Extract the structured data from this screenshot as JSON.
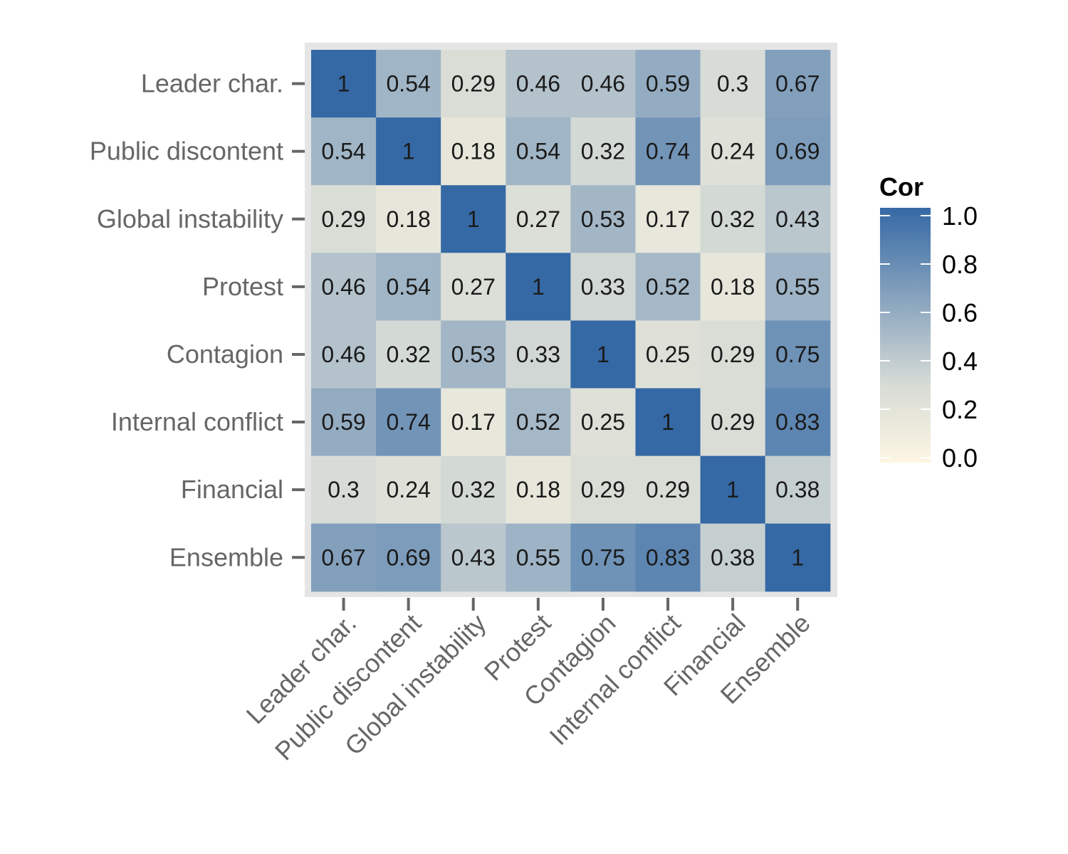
{
  "chart_data": {
    "type": "heatmap",
    "title": "",
    "xlabel": "",
    "ylabel": "",
    "categories": [
      "Leader char.",
      "Public discontent",
      "Global instability",
      "Protest",
      "Contagion",
      "Internal conflict",
      "Financial",
      "Ensemble"
    ],
    "values": [
      [
        1,
        0.54,
        0.29,
        0.46,
        0.46,
        0.59,
        0.3,
        0.67
      ],
      [
        0.54,
        1,
        0.18,
        0.54,
        0.32,
        0.74,
        0.24,
        0.69
      ],
      [
        0.29,
        0.18,
        1,
        0.27,
        0.53,
        0.17,
        0.32,
        0.43
      ],
      [
        0.46,
        0.54,
        0.27,
        1,
        0.33,
        0.52,
        0.18,
        0.55
      ],
      [
        0.46,
        0.32,
        0.53,
        0.33,
        1,
        0.25,
        0.29,
        0.75
      ],
      [
        0.59,
        0.74,
        0.17,
        0.52,
        0.25,
        1,
        0.29,
        0.83
      ],
      [
        0.3,
        0.24,
        0.32,
        0.18,
        0.29,
        0.29,
        1,
        0.38
      ],
      [
        0.67,
        0.69,
        0.43,
        0.55,
        0.75,
        0.83,
        0.38,
        1
      ]
    ],
    "cell_labels": [
      [
        "1",
        "0.54",
        "0.29",
        "0.46",
        "0.46",
        "0.59",
        "0.3",
        "0.67"
      ],
      [
        "0.54",
        "1",
        "0.18",
        "0.54",
        "0.32",
        "0.74",
        "0.24",
        "0.69"
      ],
      [
        "0.29",
        "0.18",
        "1",
        "0.27",
        "0.53",
        "0.17",
        "0.32",
        "0.43"
      ],
      [
        "0.46",
        "0.54",
        "0.27",
        "1",
        "0.33",
        "0.52",
        "0.18",
        "0.55"
      ],
      [
        "0.46",
        "0.32",
        "0.53",
        "0.33",
        "1",
        "0.25",
        "0.29",
        "0.75"
      ],
      [
        "0.59",
        "0.74",
        "0.17",
        "0.52",
        "0.25",
        "1",
        "0.29",
        "0.83"
      ],
      [
        "0.3",
        "0.24",
        "0.32",
        "0.18",
        "0.29",
        "0.29",
        "1",
        "0.38"
      ],
      [
        "0.67",
        "0.69",
        "0.43",
        "0.55",
        "0.75",
        "0.83",
        "0.38",
        "1"
      ]
    ],
    "legend": {
      "title": "Cor",
      "range": [
        0,
        1
      ],
      "ticks": [
        0,
        0.2,
        0.4,
        0.6,
        0.8,
        1.0
      ],
      "tick_labels": [
        "0.0",
        "0.2",
        "0.4",
        "0.6",
        "0.8",
        "1.0"
      ],
      "placement": "right"
    },
    "colors": {
      "low": "#fdf6e3",
      "mid": "#d8dcd6",
      "high": "#3569a5",
      "panel_background": "#e5e5e5",
      "tick": "#666666"
    }
  }
}
